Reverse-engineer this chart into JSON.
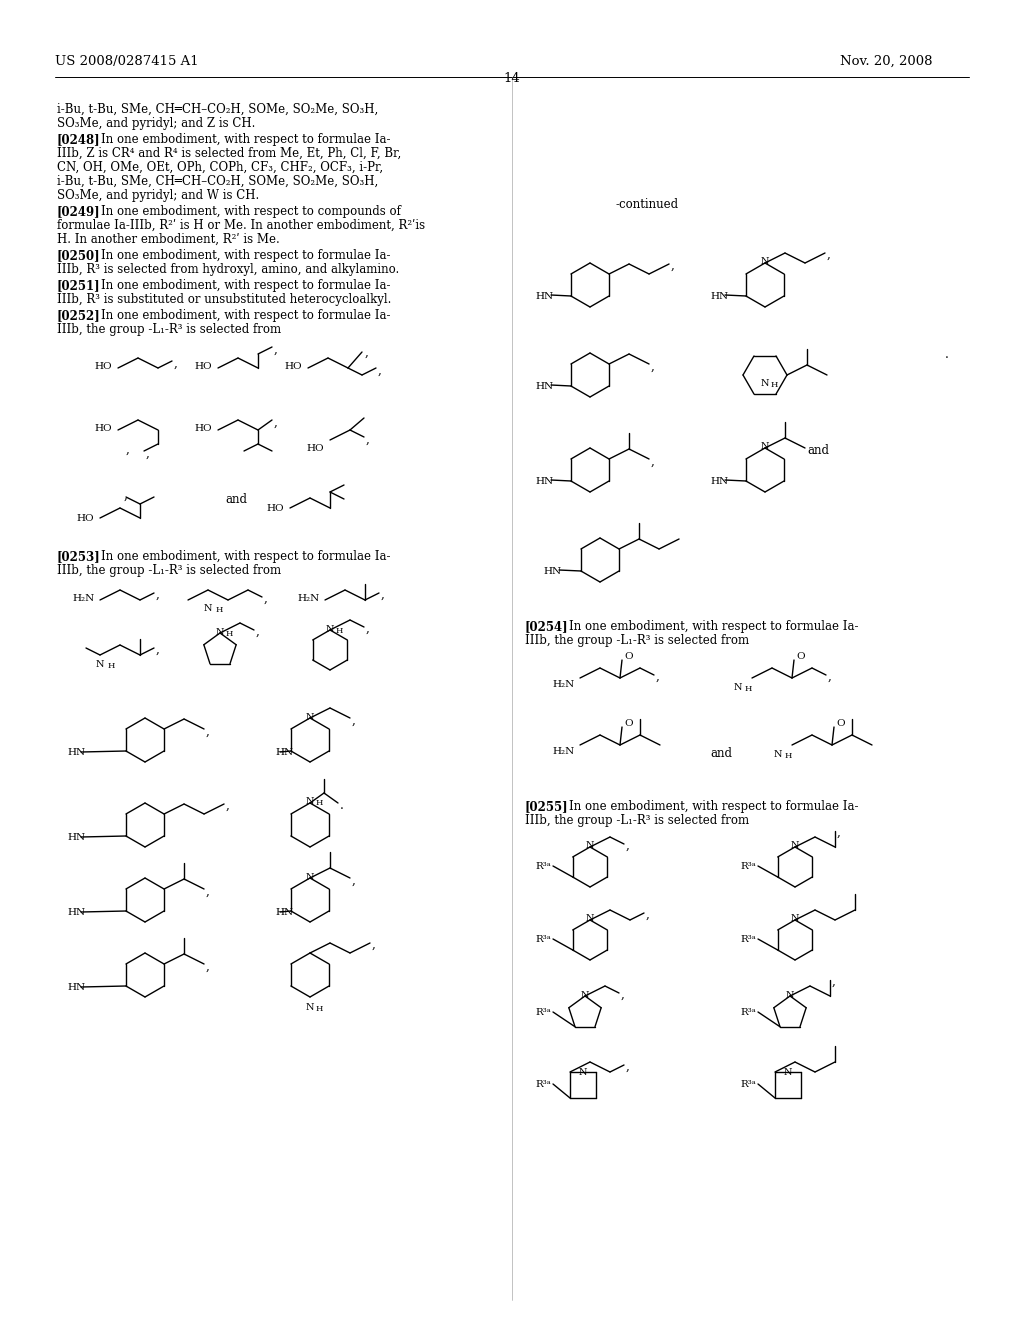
{
  "page_header_left": "US 2008/0287415 A1",
  "page_header_right": "Nov. 20, 2008",
  "page_number": "14",
  "background_color": "#ffffff",
  "figsize": [
    10.24,
    13.2
  ],
  "dpi": 100
}
